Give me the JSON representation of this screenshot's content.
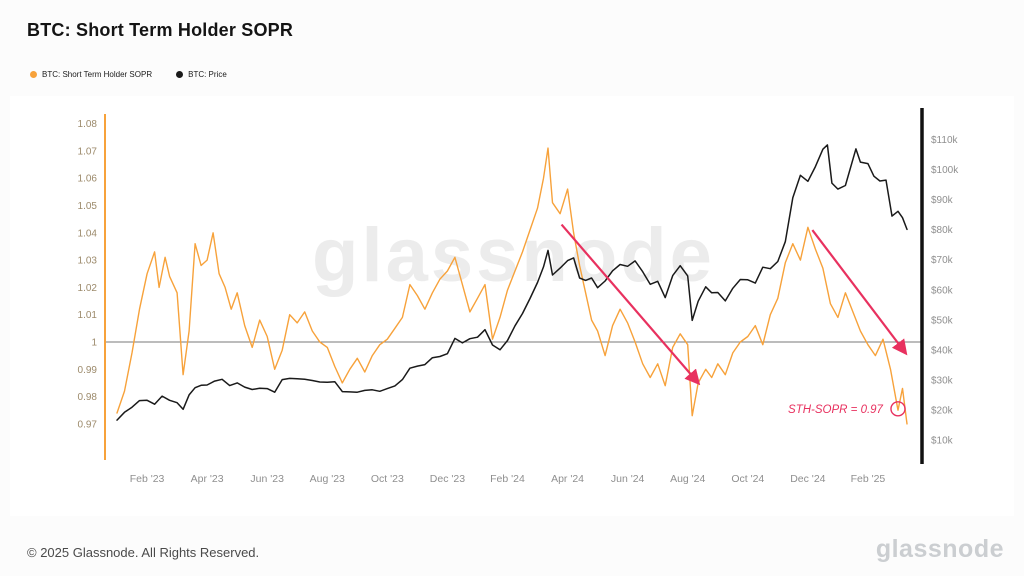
{
  "page": {
    "title": "BTC: Short Term Holder SOPR",
    "watermark": "glassnode",
    "footer_copyright": "© 2025 Glassnode. All Rights Reserved.",
    "footer_logo": "glassnode"
  },
  "legend": [
    {
      "label": "BTC: Short Term Holder SOPR",
      "color": "#f7a23b"
    },
    {
      "label": "BTC: Price",
      "color": "#1a1a1a"
    }
  ],
  "colors": {
    "sopr_line": "#f7a23b",
    "price_line": "#1a1a1a",
    "baseline": "#7a7a7a",
    "annotation": "#e8315f",
    "left_axis_line": "#f7a23b",
    "right_axis_line": "#111111",
    "left_axis_label": "#9c8a6b",
    "right_axis_label": "#8f8f8f",
    "x_axis_label": "#8f8f8f",
    "watermark": "#ececec"
  },
  "chart_data": {
    "type": "line",
    "title": "BTC: Short Term Holder SOPR",
    "x_unit": "months since Jan 2023",
    "x_range": [
      -0.4,
      26.8
    ],
    "left_axis": {
      "range": [
        0.9575,
        1.0835
      ],
      "tick_values": [
        0.97,
        0.98,
        0.99,
        1,
        1.01,
        1.02,
        1.03,
        1.04,
        1.05,
        1.06,
        1.07,
        1.08
      ],
      "tick_labels": [
        "0.97",
        "0.98",
        "0.99",
        "1",
        "1.01",
        "1.02",
        "1.03",
        "1.04",
        "1.05",
        "1.06",
        "1.07",
        "1.08"
      ]
    },
    "right_axis": {
      "range_k": [
        4,
        118.5
      ],
      "tick_values": [
        10,
        20,
        30,
        40,
        50,
        60,
        70,
        80,
        90,
        100,
        110
      ],
      "tick_labels": [
        "$10k",
        "$20k",
        "$30k",
        "$40k",
        "$50k",
        "$60k",
        "$70k",
        "$80k",
        "$90k",
        "$100k",
        "$110k"
      ]
    },
    "x_ticks": {
      "positions": [
        1,
        3,
        5,
        7,
        9,
        11,
        13,
        15,
        17,
        19,
        21,
        23,
        25
      ],
      "labels": [
        "Feb '23",
        "Apr '23",
        "Jun '23",
        "Aug '23",
        "Oct '23",
        "Dec '23",
        "Feb '24",
        "Apr '24",
        "Jun '24",
        "Aug '24",
        "Oct '24",
        "Dec '24",
        "Feb '25"
      ]
    },
    "baseline": {
      "value": 1
    },
    "series": [
      {
        "name": "BTC: Short Term Holder SOPR",
        "axis": "left",
        "color": "#f7a23b",
        "points": [
          [
            0,
            0.974
          ],
          [
            0.25,
            0.982
          ],
          [
            0.5,
            0.996
          ],
          [
            0.75,
            1.012
          ],
          [
            1,
            1.025
          ],
          [
            1.25,
            1.033
          ],
          [
            1.4,
            1.02
          ],
          [
            1.6,
            1.031
          ],
          [
            1.75,
            1.024
          ],
          [
            2,
            1.018
          ],
          [
            2.2,
            0.988
          ],
          [
            2.4,
            1.004
          ],
          [
            2.6,
            1.036
          ],
          [
            2.8,
            1.028
          ],
          [
            3,
            1.03
          ],
          [
            3.2,
            1.04
          ],
          [
            3.4,
            1.025
          ],
          [
            3.6,
            1.02
          ],
          [
            3.8,
            1.012
          ],
          [
            4,
            1.018
          ],
          [
            4.25,
            1.006
          ],
          [
            4.5,
            0.998
          ],
          [
            4.75,
            1.008
          ],
          [
            5,
            1.002
          ],
          [
            5.25,
            0.99
          ],
          [
            5.5,
            0.997
          ],
          [
            5.75,
            1.01
          ],
          [
            6,
            1.007
          ],
          [
            6.25,
            1.011
          ],
          [
            6.5,
            1.004
          ],
          [
            6.75,
            1
          ],
          [
            7,
            0.998
          ],
          [
            7.25,
            0.991
          ],
          [
            7.5,
            0.985
          ],
          [
            7.75,
            0.99
          ],
          [
            8,
            0.994
          ],
          [
            8.25,
            0.989
          ],
          [
            8.5,
            0.995
          ],
          [
            8.75,
            0.999
          ],
          [
            9,
            1.001
          ],
          [
            9.25,
            1.005
          ],
          [
            9.5,
            1.009
          ],
          [
            9.75,
            1.021
          ],
          [
            10,
            1.017
          ],
          [
            10.25,
            1.012
          ],
          [
            10.5,
            1.018
          ],
          [
            10.75,
            1.023
          ],
          [
            11,
            1.026
          ],
          [
            11.25,
            1.031
          ],
          [
            11.5,
            1.021
          ],
          [
            11.75,
            1.011
          ],
          [
            12,
            1.016
          ],
          [
            12.25,
            1.021
          ],
          [
            12.5,
            1.001
          ],
          [
            12.75,
            1.009
          ],
          [
            13,
            1.019
          ],
          [
            13.25,
            1.026
          ],
          [
            13.5,
            1.033
          ],
          [
            13.75,
            1.041
          ],
          [
            14,
            1.049
          ],
          [
            14.2,
            1.06
          ],
          [
            14.35,
            1.071
          ],
          [
            14.5,
            1.051
          ],
          [
            14.75,
            1.047
          ],
          [
            15,
            1.056
          ],
          [
            15.2,
            1.04
          ],
          [
            15.4,
            1.028
          ],
          [
            15.6,
            1.018
          ],
          [
            15.8,
            1.008
          ],
          [
            16,
            1.004
          ],
          [
            16.25,
            0.995
          ],
          [
            16.5,
            1.006
          ],
          [
            16.75,
            1.012
          ],
          [
            17,
            1.007
          ],
          [
            17.25,
            1
          ],
          [
            17.5,
            0.992
          ],
          [
            17.75,
            0.987
          ],
          [
            18,
            0.992
          ],
          [
            18.25,
            0.984
          ],
          [
            18.5,
            0.998
          ],
          [
            18.75,
            1.003
          ],
          [
            19,
            0.999
          ],
          [
            19.15,
            0.973
          ],
          [
            19.35,
            0.985
          ],
          [
            19.6,
            0.99
          ],
          [
            19.8,
            0.987
          ],
          [
            20,
            0.992
          ],
          [
            20.25,
            0.988
          ],
          [
            20.5,
            0.996
          ],
          [
            20.75,
            1
          ],
          [
            21,
            1.002
          ],
          [
            21.25,
            1.006
          ],
          [
            21.5,
            0.999
          ],
          [
            21.75,
            1.01
          ],
          [
            22,
            1.016
          ],
          [
            22.25,
            1.029
          ],
          [
            22.5,
            1.036
          ],
          [
            22.75,
            1.03
          ],
          [
            23,
            1.042
          ],
          [
            23.25,
            1.034
          ],
          [
            23.5,
            1.027
          ],
          [
            23.75,
            1.014
          ],
          [
            24,
            1.009
          ],
          [
            24.25,
            1.018
          ],
          [
            24.5,
            1.011
          ],
          [
            24.75,
            1.004
          ],
          [
            25,
            0.999
          ],
          [
            25.25,
            0.995
          ],
          [
            25.5,
            1.001
          ],
          [
            25.75,
            0.99
          ],
          [
            26,
            0.975
          ],
          [
            26.15,
            0.983
          ],
          [
            26.3,
            0.97
          ]
        ]
      },
      {
        "name": "BTC: Price",
        "axis": "right",
        "color": "#1a1a1a",
        "points": [
          [
            0,
            16.6
          ],
          [
            0.25,
            19.2
          ],
          [
            0.5,
            20.9
          ],
          [
            0.75,
            23.1
          ],
          [
            1,
            23.2
          ],
          [
            1.25,
            21.9
          ],
          [
            1.5,
            24.6
          ],
          [
            1.75,
            23.2
          ],
          [
            2,
            22.4
          ],
          [
            2.2,
            20.2
          ],
          [
            2.4,
            25
          ],
          [
            2.6,
            27.4
          ],
          [
            2.8,
            28.2
          ],
          [
            3,
            28.3
          ],
          [
            3.25,
            29.6
          ],
          [
            3.5,
            30.2
          ],
          [
            3.75,
            28.1
          ],
          [
            4,
            29
          ],
          [
            4.25,
            27.6
          ],
          [
            4.5,
            26.8
          ],
          [
            4.75,
            27.2
          ],
          [
            5,
            27.1
          ],
          [
            5.25,
            25.9
          ],
          [
            5.5,
            30.1
          ],
          [
            5.75,
            30.5
          ],
          [
            6,
            30.4
          ],
          [
            6.25,
            30.2
          ],
          [
            6.5,
            29.8
          ],
          [
            6.75,
            29.3
          ],
          [
            7,
            29.2
          ],
          [
            7.25,
            29.4
          ],
          [
            7.5,
            26.1
          ],
          [
            7.75,
            26
          ],
          [
            8,
            25.9
          ],
          [
            8.25,
            26.5
          ],
          [
            8.5,
            26.7
          ],
          [
            8.75,
            26.2
          ],
          [
            9,
            27.1
          ],
          [
            9.25,
            28
          ],
          [
            9.5,
            30.1
          ],
          [
            9.75,
            33.9
          ],
          [
            10,
            34.6
          ],
          [
            10.25,
            35.1
          ],
          [
            10.5,
            37.4
          ],
          [
            10.75,
            37.8
          ],
          [
            11,
            38.7
          ],
          [
            11.25,
            43.8
          ],
          [
            11.5,
            42.3
          ],
          [
            11.75,
            43.7
          ],
          [
            12,
            44.2
          ],
          [
            12.25,
            46.7
          ],
          [
            12.5,
            41.6
          ],
          [
            12.75,
            40
          ],
          [
            13,
            43.1
          ],
          [
            13.25,
            48
          ],
          [
            13.5,
            52.1
          ],
          [
            13.75,
            57.1
          ],
          [
            14,
            62.4
          ],
          [
            14.2,
            67.6
          ],
          [
            14.35,
            73.1
          ],
          [
            14.5,
            64.9
          ],
          [
            14.75,
            67.2
          ],
          [
            15,
            69.7
          ],
          [
            15.2,
            70.6
          ],
          [
            15.4,
            63.9
          ],
          [
            15.6,
            63.1
          ],
          [
            15.8,
            63.9
          ],
          [
            16,
            60.7
          ],
          [
            16.25,
            62.9
          ],
          [
            16.5,
            66.3
          ],
          [
            16.75,
            68.4
          ],
          [
            17,
            67.8
          ],
          [
            17.25,
            69.6
          ],
          [
            17.5,
            66
          ],
          [
            17.75,
            61.8
          ],
          [
            18,
            62.8
          ],
          [
            18.25,
            57.4
          ],
          [
            18.5,
            64.7
          ],
          [
            18.75,
            68
          ],
          [
            19,
            64.6
          ],
          [
            19.15,
            49.8
          ],
          [
            19.35,
            56.2
          ],
          [
            19.6,
            61
          ],
          [
            19.8,
            59
          ],
          [
            20,
            59.1
          ],
          [
            20.25,
            56.3
          ],
          [
            20.5,
            60.5
          ],
          [
            20.75,
            63.4
          ],
          [
            21,
            63.3
          ],
          [
            21.25,
            62.2
          ],
          [
            21.5,
            67.5
          ],
          [
            21.75,
            67
          ],
          [
            22,
            69.4
          ],
          [
            22.25,
            76
          ],
          [
            22.5,
            90.6
          ],
          [
            22.75,
            98.1
          ],
          [
            23,
            96.1
          ],
          [
            23.25,
            101
          ],
          [
            23.5,
            106.8
          ],
          [
            23.65,
            108.2
          ],
          [
            23.8,
            95.5
          ],
          [
            24,
            93.5
          ],
          [
            24.25,
            94.7
          ],
          [
            24.6,
            106.9
          ],
          [
            24.75,
            102.5
          ],
          [
            25,
            102
          ],
          [
            25.2,
            97.8
          ],
          [
            25.4,
            96.2
          ],
          [
            25.6,
            96.5
          ],
          [
            25.8,
            84.5
          ],
          [
            26,
            86.1
          ],
          [
            26.15,
            84
          ],
          [
            26.3,
            80.1
          ]
        ]
      }
    ],
    "annotations": {
      "arrows": [
        {
          "from": [
            14.8,
            1.043
          ],
          "to": [
            19.35,
            0.985
          ]
        },
        {
          "from": [
            23.15,
            1.041
          ],
          "to": [
            26.25,
            0.996
          ]
        }
      ],
      "callout": {
        "text": "STH-SOPR = 0.97",
        "x": 26.0,
        "y": 0.9755
      },
      "circle": {
        "x": 26.0,
        "y": 0.9755,
        "r": 7
      }
    }
  }
}
